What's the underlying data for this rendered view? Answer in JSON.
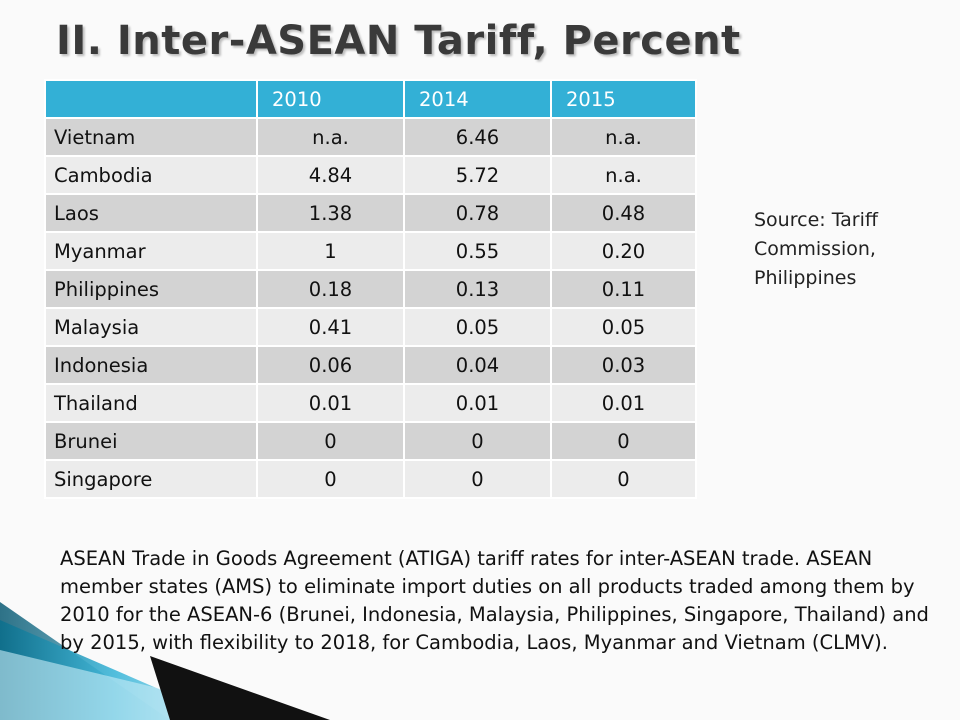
{
  "title": "II. Inter-ASEAN Tariff, Percent",
  "table": {
    "columns": [
      "",
      "2010",
      "2014",
      "2015"
    ],
    "rows": [
      {
        "country": "Vietnam",
        "v2010": "n.a.",
        "v2014": "6.46",
        "v2015": "n.a."
      },
      {
        "country": "Cambodia",
        "v2010": "4.84",
        "v2014": "5.72",
        "v2015": "n.a."
      },
      {
        "country": "Laos",
        "v2010": "1.38",
        "v2014": "0.78",
        "v2015": "0.48"
      },
      {
        "country": "Myanmar",
        "v2010": "1",
        "v2014": "0.55",
        "v2015": "0.20"
      },
      {
        "country": "Philippines",
        "v2010": "0.18",
        "v2014": "0.13",
        "v2015": "0.11"
      },
      {
        "country": "Malaysia",
        "v2010": "0.41",
        "v2014": "0.05",
        "v2015": "0.05"
      },
      {
        "country": "Indonesia",
        "v2010": "0.06",
        "v2014": "0.04",
        "v2015": "0.03"
      },
      {
        "country": "Thailand",
        "v2010": "0.01",
        "v2014": "0.01",
        "v2015": "0.01"
      },
      {
        "country": "Brunei",
        "v2010": "0",
        "v2014": "0",
        "v2015": "0"
      },
      {
        "country": "Singapore",
        "v2010": "0",
        "v2014": "0",
        "v2015": "0"
      }
    ]
  },
  "source": {
    "line1": "Source: Tariff",
    "line2": "Commission,",
    "line3": "Philippines"
  },
  "note": "ASEAN Trade in Goods Agreement (ATIGA)  tariff rates for inter-ASEAN trade. ASEAN member states (AMS) to  eliminate import duties on all products traded among them by 2010 for the ASEAN-6 (Brunei, Indonesia, Malaysia, Philippines, Singapore, Thailand) and by 2015, with flexibility to 2018, for Cambodia, Laos, Myanmar and Vietnam (CLMV).",
  "colors": {
    "header": "#33b0d6",
    "row_dark": "#d3d3d3",
    "row_light": "#ececec",
    "accent_teal": "#1a8fb0",
    "accent_black": "#111111"
  }
}
